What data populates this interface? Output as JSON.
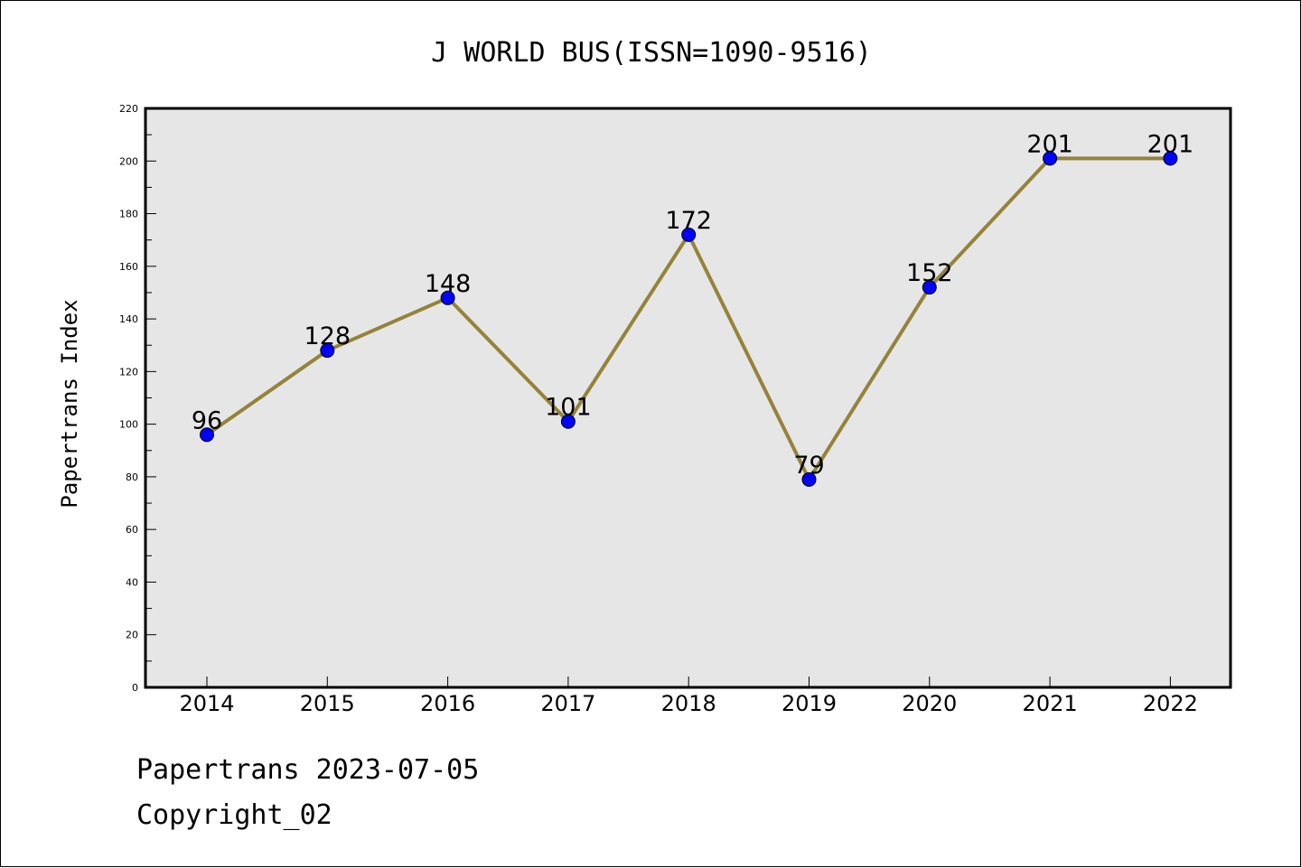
{
  "chart_data": {
    "type": "line",
    "title": "J WORLD BUS(ISSN=1090-9516)",
    "xlabel": "",
    "ylabel": "Papertrans Index",
    "categories": [
      "2014",
      "2015",
      "2016",
      "2017",
      "2018",
      "2019",
      "2020",
      "2021",
      "2022"
    ],
    "series": [
      {
        "values": [
          96,
          128,
          148,
          101,
          172,
          79,
          152,
          201,
          201
        ]
      }
    ],
    "data_labels": [
      "96",
      "128",
      "148",
      "101",
      "172",
      "79",
      "152",
      "201",
      "201"
    ],
    "ylim": [
      0,
      220
    ],
    "y_ticks": [
      0,
      20,
      40,
      60,
      80,
      100,
      120,
      140,
      160,
      180,
      200,
      220
    ],
    "y_tick_labels": [
      "0",
      "20",
      "40",
      "60",
      "80",
      "100",
      "120",
      "140",
      "160",
      "180",
      "200",
      "220"
    ],
    "grid": false,
    "colors": {
      "line": "#948339",
      "marker": "#0000ff",
      "plot_background": "#e6e6e6"
    }
  },
  "footer": {
    "line1": "Papertrans 2023-07-05",
    "line2": "Copyright_02"
  }
}
